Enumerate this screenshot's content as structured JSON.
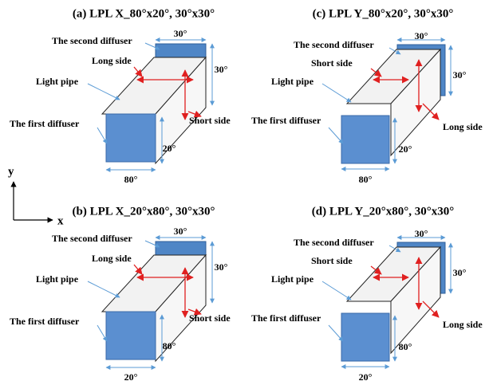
{
  "axes": {
    "y": "y",
    "x": "x"
  },
  "panels": [
    {
      "title": "(a) LPL X_80°x20°, 30°x30°",
      "second_diffuser": "The second diffuser",
      "long_side": "Long side",
      "short_side": "Short side",
      "light_pipe": "Light pipe",
      "first_diffuser": "The first diffuser",
      "top_width": "30°",
      "top_height": "30°",
      "bottom_width": "80°",
      "bottom_height": "20°"
    },
    {
      "title": "(c) LPL Y_80°x20°, 30°x30°",
      "second_diffuser": "The second diffuser",
      "long_side": "Long side",
      "short_side": "Short side",
      "light_pipe": "Light pipe",
      "first_diffuser": "The first diffuser",
      "top_width": "30°",
      "top_height": "30°",
      "bottom_width": "80°",
      "bottom_height": "20°"
    },
    {
      "title": "(b) LPL X_20°x80°, 30°x30°",
      "second_diffuser": "The second diffuser",
      "long_side": "Long side",
      "short_side": "Short side",
      "light_pipe": "Light pipe",
      "first_diffuser": "The first diffuser",
      "top_width": "30°",
      "top_height": "30°",
      "bottom_width": "20°",
      "bottom_height": "80°"
    },
    {
      "title": "(d) LPL Y_20°x80°, 30°x30°",
      "second_diffuser": "The second diffuser",
      "long_side": "Long side",
      "short_side": "Short side",
      "light_pipe": "Light pipe",
      "first_diffuser": "The first diffuser",
      "top_width": "30°",
      "top_height": "30°",
      "bottom_width": "20°",
      "bottom_height": "80°"
    }
  ]
}
